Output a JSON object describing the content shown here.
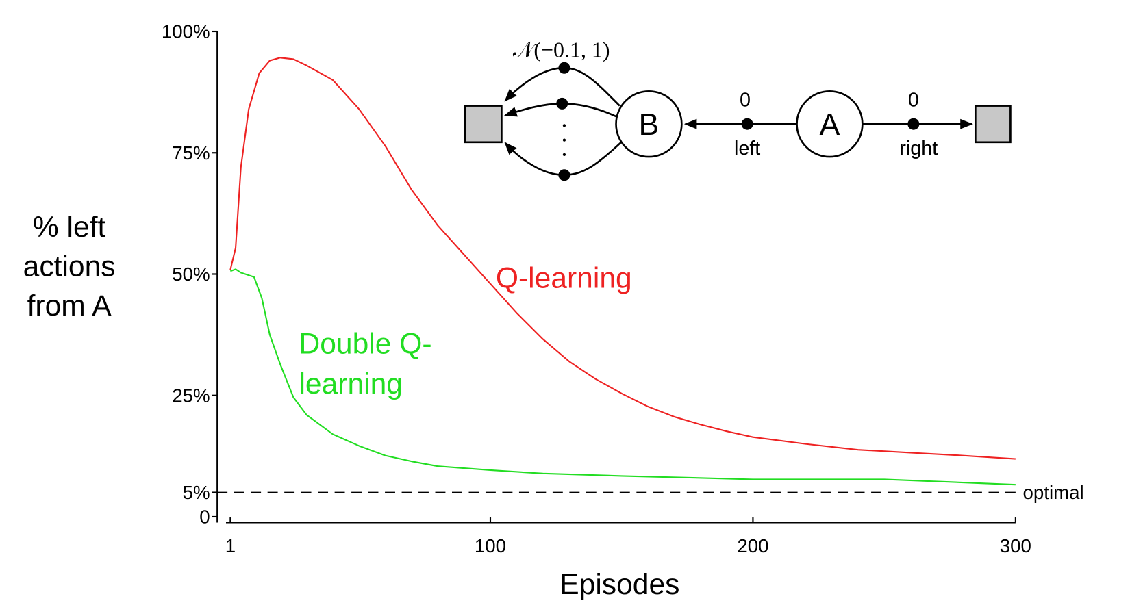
{
  "chart_data": {
    "type": "line",
    "x_label": "Episodes",
    "y_label": "% left actions from A",
    "xlim": [
      1,
      300
    ],
    "xticks": [
      1,
      100,
      200,
      300
    ],
    "ylim": [
      0,
      100
    ],
    "yticks": [
      0,
      {
        "value": 5,
        "label": "5%"
      },
      {
        "value": 25,
        "label": "25%"
      },
      {
        "value": 50,
        "label": "50%"
      },
      {
        "value": 75,
        "label": "75%"
      },
      {
        "value": 100,
        "label": "100%"
      }
    ],
    "reference_line": {
      "value": 5,
      "label": "optimal"
    },
    "series": [
      {
        "name": "Q-learning",
        "color": "#ee2222",
        "x": [
          1,
          3,
          5,
          8,
          12,
          16,
          20,
          25,
          30,
          40,
          50,
          60,
          70,
          80,
          90,
          100,
          110,
          120,
          130,
          140,
          150,
          160,
          170,
          180,
          190,
          200,
          220,
          240,
          260,
          280,
          300
        ],
        "values": [
          50.9,
          55.4,
          72,
          84,
          91.4,
          94,
          94.6,
          94.3,
          93,
          90,
          84,
          76.4,
          67.4,
          60,
          54,
          48,
          42,
          36.6,
          32,
          28.4,
          25.4,
          22.7,
          20.6,
          19,
          17.6,
          16.4,
          15,
          13.8,
          13.2,
          12.6,
          11.9
        ]
      },
      {
        "name": "Double Q-learning",
        "color": "#22dd22",
        "x": [
          1,
          3,
          5,
          10,
          13,
          16,
          20,
          25,
          30,
          40,
          50,
          60,
          70,
          80,
          100,
          120,
          150,
          200,
          250,
          300
        ],
        "values": [
          50.6,
          51,
          50.3,
          49.4,
          45,
          37.5,
          31.4,
          24.6,
          21,
          17,
          14.6,
          12.6,
          11.4,
          10.4,
          9.6,
          8.9,
          8.4,
          7.7,
          7.7,
          6.6
        ]
      }
    ],
    "inset": {
      "noise_label": "𝒩(−0.1, 1)",
      "node_b": "B",
      "node_a": "A",
      "left_reward": "0",
      "right_reward": "0",
      "left_action": "left",
      "right_action": "right"
    }
  }
}
